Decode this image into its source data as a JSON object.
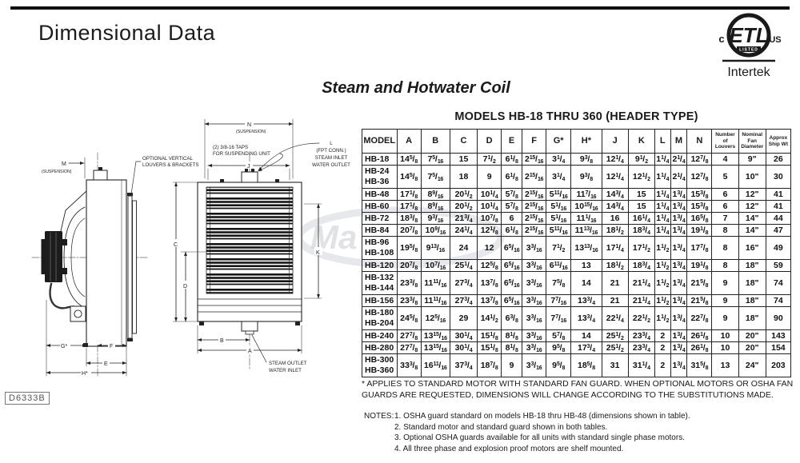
{
  "header": {
    "page_title": "Dimensional Data",
    "section_title": "Steam and Hotwater Coil"
  },
  "etl": {
    "letters": "ETL",
    "listed": "LISTED",
    "c_mark": "c",
    "us_mark": "US",
    "intertek": "Intertek"
  },
  "watermark_text": "Ma",
  "table": {
    "title": "MODELS HB-18 THRU 360 (HEADER TYPE)",
    "columns": [
      "MODEL",
      "A",
      "B",
      "C",
      "D",
      "E",
      "F",
      "G*",
      "H*",
      "J",
      "K",
      "L",
      "M",
      "N",
      "Number of Louvers",
      "Nominal Fan Diameter",
      "Approx Ship Wt"
    ],
    "rows": [
      {
        "models": [
          "HB-18"
        ],
        "values": [
          "14 5/8",
          "7 5/16",
          "15",
          "7 1/2",
          "6 1/8",
          "2 15/16",
          "3 1/4",
          "9 3/8",
          "12 1/4",
          "9 1/2",
          "1 1/4",
          "2 1/4",
          "12 7/8",
          "4",
          "9\"",
          "26"
        ]
      },
      {
        "models": [
          "HB-24",
          "HB-36"
        ],
        "values": [
          "14 5/8",
          "7 5/16",
          "18",
          "9",
          "6 1/8",
          "2 15/16",
          "3 1/4",
          "9 3/8",
          "12 1/4",
          "12 1/2",
          "1 1/4",
          "2 1/4",
          "12 7/8",
          "5",
          "10\"",
          "30"
        ]
      },
      {
        "models": [
          "HB-48"
        ],
        "values": [
          "17 1/8",
          "8 9/16",
          "20 1/2",
          "10 1/4",
          "5 7/8",
          "2 15/16",
          "5 11/16",
          "11 7/16",
          "14 3/4",
          "15",
          "1 1/4",
          "1 3/4",
          "15 3/8",
          "6",
          "12\"",
          "41"
        ]
      },
      {
        "models": [
          "HB-60"
        ],
        "values": [
          "17 1/8",
          "8 9/16",
          "20 1/2",
          "10 1/4",
          "5 7/8",
          "2 15/16",
          "5 1/16",
          "10 15/16",
          "14 3/4",
          "15",
          "1 1/4",
          "1 3/4",
          "15 3/8",
          "6",
          "12\"",
          "41"
        ]
      },
      {
        "models": [
          "HB-72"
        ],
        "values": [
          "18 3/8",
          "9 3/16",
          "21 3/4",
          "10 7/8",
          "6",
          "2 15/16",
          "5 1/16",
          "11 1/16",
          "16",
          "16 1/4",
          "1 1/4",
          "1 3/4",
          "16 5/8",
          "7",
          "14\"",
          "44"
        ]
      },
      {
        "models": [
          "HB-84"
        ],
        "values": [
          "20 7/8",
          "10 9/16",
          "24 1/4",
          "12 1/8",
          "6 1/8",
          "2 15/16",
          "5 11/16",
          "11 13/16",
          "18 1/2",
          "18 3/4",
          "1 1/4",
          "1 3/4",
          "19 1/8",
          "8",
          "14\"",
          "47"
        ]
      },
      {
        "models": [
          "HB-96",
          "HB-108"
        ],
        "values": [
          "19 5/8",
          "9 13/16",
          "24",
          "12",
          "6 5/16",
          "3 3/16",
          "7 1/2",
          "13 13/16",
          "17 1/4",
          "17 1/2",
          "1 1/2",
          "1 3/4",
          "17 7/8",
          "8",
          "16\"",
          "49"
        ]
      },
      {
        "models": [
          "HB-120"
        ],
        "values": [
          "20 7/8",
          "10 7/16",
          "25 1/4",
          "12 5/8",
          "6 5/16",
          "3 3/16",
          "6 11/16",
          "13",
          "18 1/2",
          "18 3/4",
          "1 1/2",
          "1 3/4",
          "19 1/8",
          "8",
          "18\"",
          "59"
        ]
      },
      {
        "models": [
          "HB-132",
          "HB-144"
        ],
        "values": [
          "23 3/8",
          "11 11/16",
          "27 3/4",
          "13 7/8",
          "6 5/16",
          "3 3/16",
          "7 5/8",
          "14",
          "21",
          "21 1/4",
          "1 1/2",
          "1 3/4",
          "21 5/8",
          "9",
          "18\"",
          "74"
        ]
      },
      {
        "models": [
          "HB-156"
        ],
        "values": [
          "23 3/8",
          "11 11/16",
          "27 3/4",
          "13 7/8",
          "6 5/16",
          "3 3/16",
          "7 7/16",
          "13 3/4",
          "21",
          "21 1/4",
          "1 1/2",
          "1 3/4",
          "21 5/8",
          "9",
          "18\"",
          "74"
        ]
      },
      {
        "models": [
          "HB-180",
          "HB-204"
        ],
        "values": [
          "24 5/8",
          "12 5/16",
          "29",
          "14 1/2",
          "6 3/8",
          "3 3/16",
          "7 7/16",
          "13 3/4",
          "22 1/4",
          "22 1/2",
          "1 1/2",
          "1 3/4",
          "22 7/8",
          "9",
          "18\"",
          "90"
        ]
      },
      {
        "models": [
          "HB-240"
        ],
        "values": [
          "27 7/8",
          "13 15/16",
          "30 1/4",
          "15 1/8",
          "8 1/8",
          "3 3/16",
          "5 7/8",
          "14",
          "25 1/2",
          "23 3/4",
          "2",
          "1 3/4",
          "26 1/8",
          "10",
          "20\"",
          "143"
        ]
      },
      {
        "models": [
          "HB-280"
        ],
        "values": [
          "27 7/8",
          "13 15/16",
          "30 1/4",
          "15 1/8",
          "8 1/8",
          "3 3/16",
          "9 5/8",
          "17 3/4",
          "25 1/2",
          "23 3/4",
          "2",
          "1 3/4",
          "26 1/8",
          "10",
          "20\"",
          "154"
        ]
      },
      {
        "models": [
          "HB-300",
          "HB-360"
        ],
        "values": [
          "33 3/8",
          "16 11/16",
          "37 3/4",
          "18 7/8",
          "9",
          "3 3/16",
          "9 5/8",
          "18 5/8",
          "31",
          "31 1/4",
          "2",
          "1 3/4",
          "31 5/8",
          "13",
          "24\"",
          "203"
        ]
      }
    ]
  },
  "footnote": "* APPLIES TO STANDARD MOTOR WITH STANDARD FAN GUARD. WHEN OPTIONAL MOTORS OR OSHA FAN GUARDS ARE REQUESTED, DIMENSIONS WILL CHANGE ACCORDING TO THE SUBSTITUTIONS MADE.",
  "notes": {
    "label": "NOTES:",
    "items": [
      "1. OSHA guard standard on models HB-18 thru HB-48 (dimensions shown in table).",
      "2. Standard motor and standard guard shown in both tables.",
      "3. Optional OSHA guards available for all units with standard single phase motors.",
      "4. All three phase and explosion proof motors are shelf mounted."
    ]
  },
  "drawing": {
    "doc_number": "D6333B",
    "side_view": {
      "dim_m": "M",
      "suspension": "(SUSPENSION)",
      "callout_louvers_1": "OPTIONAL VERTICAL",
      "callout_louvers_2": "LOUVERS & BRACKETS",
      "dim_g": "G*",
      "dim_f": "F",
      "dim_e": "E",
      "dim_h": "H*"
    },
    "front_view": {
      "dim_n": "N",
      "suspension": "(SUSPENSION)",
      "taps_1": "(2) 3/8-16 TAPS",
      "taps_2": "FOR SUSPENDING UNIT",
      "dim_j": "J",
      "conn_l_1": "L",
      "conn_l_2": "(FPT CONN.)",
      "conn_l_3": "STEAM INLET",
      "conn_l_4": "WATER OUTLET",
      "dim_c": "C",
      "dim_d": "D",
      "dim_k": "K",
      "dim_b": "B",
      "dim_a": "A",
      "outlet_1": "STEAM OUTLET",
      "outlet_2": "WATER INLET"
    }
  }
}
